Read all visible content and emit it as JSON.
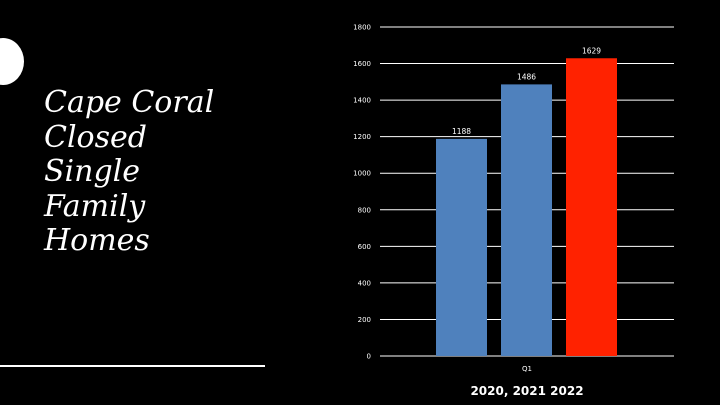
{
  "slide": {
    "title_lines": [
      "Cape Coral",
      "Closed",
      "Single",
      "Family",
      "Homes"
    ]
  },
  "chart_data": {
    "type": "bar",
    "categories": [
      "Q1"
    ],
    "series": [
      {
        "values": [
          1188
        ],
        "color": "#4f81bd"
      },
      {
        "values": [
          1486
        ],
        "color": "#4f81bd"
      },
      {
        "values": [
          1629
        ],
        "color": "#ff2200"
      }
    ],
    "title": "",
    "xlabel": "2020, 2021 2022",
    "ylabel": "",
    "ylim": [
      0,
      1800
    ],
    "yticks": [
      "0",
      "200",
      "400",
      "600",
      "800",
      "1000",
      "1200",
      "1400",
      "1600",
      "1800"
    ],
    "data_labels": [
      "1188",
      "1486",
      "1629"
    ],
    "grid": true,
    "legend": "none"
  }
}
